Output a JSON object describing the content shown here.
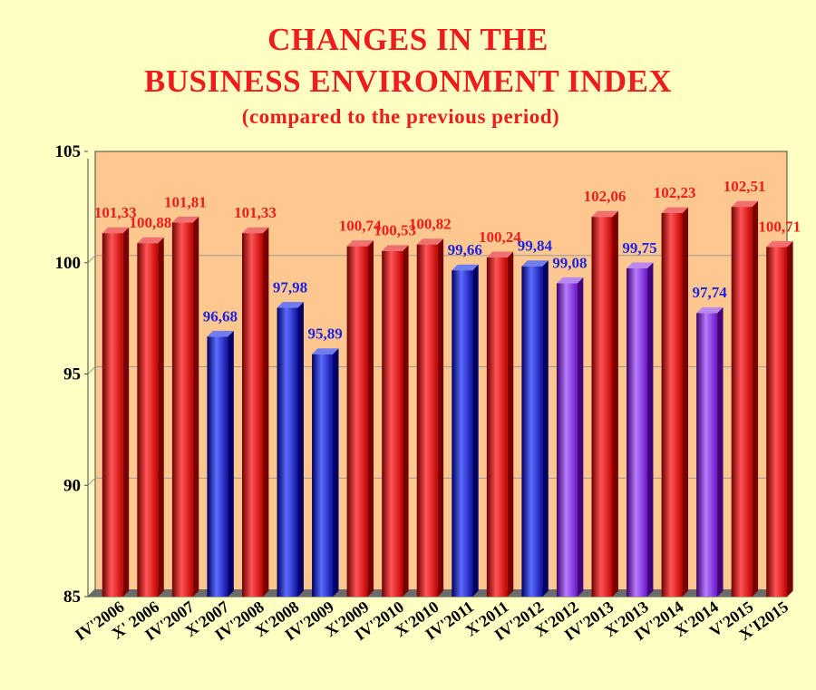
{
  "header": {
    "title_line1": "CHANGES IN THE",
    "title_line2": "BUSINESS ENVIRONMENT INDEX",
    "subtitle": "(compared to the previous period)"
  },
  "colors": {
    "background": "#ffffc4",
    "plot_area": "#fcc890",
    "title": "#ee1c1c",
    "label_red": "#ee1c1c",
    "label_blue": "#2222dd",
    "bar_red": "#e11",
    "bar_blue": "#2233cc",
    "bar_purple": "#8a2be2"
  },
  "chart_data": {
    "type": "bar",
    "title": "CHANGES IN THE BUSINESS ENVIRONMENT INDEX",
    "subtitle": "(compared to the previous period)",
    "xlabel": "",
    "ylabel": "",
    "ylim": [
      85,
      105
    ],
    "yticks": [
      85,
      90,
      95,
      100,
      105
    ],
    "grid": true,
    "categories": [
      "IV'2006",
      "X' 2006",
      "IV'2007",
      "X'2007",
      "IV'2008",
      "X'2008",
      "IV'2009",
      "X'2009",
      "IV'2010",
      "X'2010",
      "IV'2011",
      "X'2011",
      "IV'2012",
      "X'2012",
      "IV'2013",
      "X'2013",
      "IV'2014",
      "X'2014",
      "V'2015",
      "X'I2015"
    ],
    "values": [
      101.33,
      100.88,
      101.81,
      96.68,
      101.33,
      97.98,
      95.89,
      100.74,
      100.53,
      100.82,
      99.66,
      100.24,
      99.84,
      99.08,
      102.06,
      99.75,
      102.23,
      97.74,
      102.51,
      100.71
    ],
    "value_labels": [
      "101,33",
      "100,88",
      "101,81",
      "96,68",
      "101,33",
      "97,98",
      "95,89",
      "100,74",
      "100,53",
      "100,82",
      "99,66",
      "100,24",
      "99,84",
      "99,08",
      "102,06",
      "99,75",
      "102,23",
      "97,74",
      "102,51",
      "100,71"
    ],
    "bar_colors": [
      "red",
      "red",
      "red",
      "blue",
      "red",
      "blue",
      "blue",
      "red",
      "red",
      "red",
      "blue",
      "red",
      "blue",
      "purple",
      "red",
      "purple",
      "red",
      "purple",
      "red",
      "red"
    ],
    "label_colors": [
      "red",
      "red",
      "red",
      "blue",
      "red",
      "blue",
      "blue",
      "red",
      "red",
      "red",
      "blue",
      "red",
      "blue",
      "blue",
      "red",
      "blue",
      "red",
      "blue",
      "red",
      "red"
    ]
  }
}
